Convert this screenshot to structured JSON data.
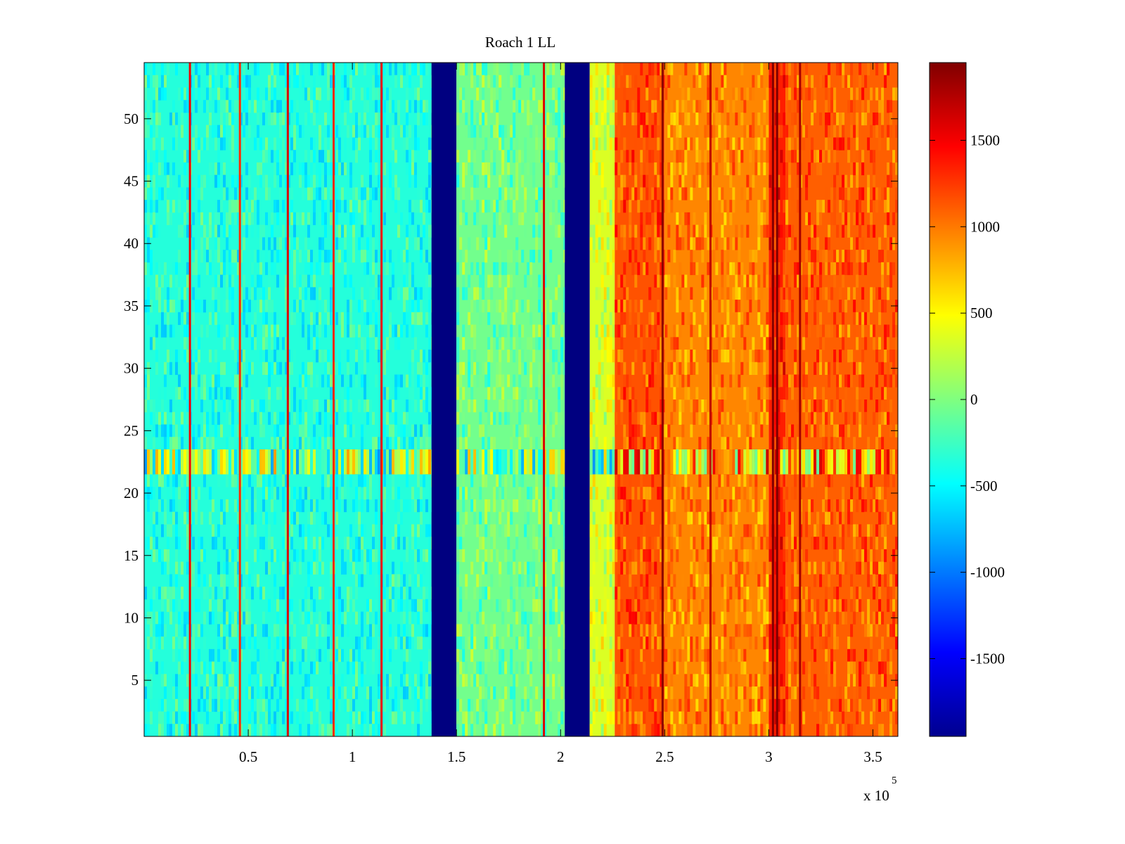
{
  "chart_data": {
    "type": "heatmap",
    "title": "Roach 1 LL",
    "xlabel": "",
    "ylabel": "",
    "x_exponent_label": "x 10",
    "x_exponent": "5",
    "xlim": [
      0.0,
      3.62
    ],
    "ylim": [
      0.5,
      54.5
    ],
    "x_ticks": [
      0.5,
      1,
      1.5,
      2,
      2.5,
      3,
      3.5
    ],
    "x_tick_labels": [
      "0.5",
      "1",
      "1.5",
      "2",
      "2.5",
      "3",
      "3.5"
    ],
    "y_ticks": [
      5,
      10,
      15,
      20,
      25,
      30,
      35,
      40,
      45,
      50
    ],
    "y_tick_labels": [
      "5",
      "10",
      "15",
      "20",
      "25",
      "30",
      "35",
      "40",
      "45",
      "50"
    ],
    "rows": 54,
    "colormap": "jet",
    "colorbar": {
      "clim": [
        -1950,
        1950
      ],
      "ticks": [
        -1500,
        -1000,
        -500,
        0,
        500,
        1000,
        1500
      ],
      "tick_labels": [
        "-1500",
        "-1000",
        "-500",
        "0",
        "500",
        "1000",
        "1500"
      ]
    },
    "column_profile": [
      {
        "x_start": 0.0,
        "x_end": 1.38,
        "value": -350
      },
      {
        "x_start": 1.38,
        "x_end": 1.5,
        "value": -1950
      },
      {
        "x_start": 1.5,
        "x_end": 2.02,
        "value": -50
      },
      {
        "x_start": 2.02,
        "x_end": 2.14,
        "value": -1950
      },
      {
        "x_start": 2.14,
        "x_end": 2.26,
        "value": 350
      },
      {
        "x_start": 2.26,
        "x_end": 2.5,
        "value": 1150
      },
      {
        "x_start": 2.5,
        "x_end": 3.0,
        "value": 950
      },
      {
        "x_start": 3.0,
        "x_end": 3.08,
        "value": 1350
      },
      {
        "x_start": 3.08,
        "x_end": 3.62,
        "value": 1100
      }
    ],
    "column_lines": [
      {
        "x": 0.22,
        "value": 1500
      },
      {
        "x": 0.46,
        "value": 1300
      },
      {
        "x": 0.69,
        "value": 1600
      },
      {
        "x": 0.91,
        "value": 1300
      },
      {
        "x": 1.14,
        "value": 1500
      },
      {
        "x": 1.92,
        "value": 1600
      },
      {
        "x": 2.49,
        "value": 1900
      },
      {
        "x": 2.72,
        "value": 1700
      },
      {
        "x": 3.02,
        "value": 1950
      },
      {
        "x": 3.04,
        "value": 1950
      },
      {
        "x": 3.15,
        "value": 1800
      }
    ],
    "anomalous_rows": {
      "y_start": 21.5,
      "y_end": 23.5,
      "description_values": [
        -1200,
        1800
      ]
    }
  }
}
